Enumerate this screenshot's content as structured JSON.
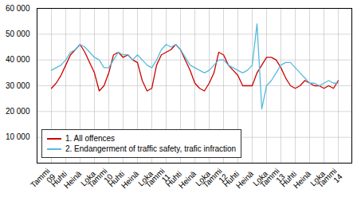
{
  "chart_data": {
    "type": "line",
    "categories": [
      "Tammi\n09",
      null,
      null,
      "Huhti",
      null,
      null,
      "Heinä",
      null,
      null,
      "Loka",
      null,
      null,
      "Tammi\n10",
      null,
      null,
      "Huhti",
      null,
      null,
      "Heinä",
      null,
      null,
      "Loka",
      null,
      null,
      "Tammi\n11",
      null,
      null,
      "Huhti",
      null,
      null,
      "Heinä",
      null,
      null,
      "Loka",
      null,
      null,
      "Tammi\n12",
      null,
      null,
      "Huhti",
      null,
      null,
      "Heinä",
      null,
      null,
      "Loka",
      null,
      null,
      "Tammi\n13",
      null,
      null,
      "Huhti",
      null,
      null,
      "Heinä",
      null,
      null,
      "Loka",
      null,
      null,
      "Tammi\n14"
    ],
    "series": [
      {
        "name": "1. All offences",
        "color": "#cc0000",
        "values": [
          29000,
          31000,
          34000,
          38000,
          42000,
          44000,
          46000,
          43000,
          39000,
          35000,
          28000,
          30000,
          35000,
          42000,
          43000,
          41000,
          42000,
          40000,
          39000,
          32000,
          28000,
          29000,
          38000,
          42000,
          43000,
          44000,
          46000,
          44000,
          40000,
          36000,
          31000,
          29000,
          28000,
          31000,
          35000,
          43000,
          42000,
          38000,
          36000,
          34000,
          30000,
          30000,
          30000,
          35000,
          38000,
          41000,
          41000,
          40000,
          37000,
          33000,
          30000,
          29000,
          30000,
          32000,
          31000,
          30000,
          30000,
          29000,
          30000,
          29000,
          32000
        ]
      },
      {
        "name": "2. Endangerment of traffic safety, trafic infraction",
        "color": "#55bbdd",
        "values": [
          36000,
          37000,
          38000,
          40000,
          43000,
          44000,
          46000,
          45000,
          43000,
          41000,
          40000,
          37000,
          37000,
          40000,
          43000,
          42000,
          42000,
          40000,
          42000,
          40000,
          38000,
          37000,
          40000,
          44000,
          46000,
          45000,
          46000,
          44000,
          41000,
          38000,
          37000,
          36000,
          35000,
          36000,
          38000,
          40000,
          40000,
          38000,
          37000,
          36000,
          35000,
          36000,
          38000,
          54000,
          21000,
          30000,
          32000,
          35000,
          38000,
          39000,
          39000,
          37000,
          35000,
          33000,
          31000,
          31000,
          30000,
          31000,
          32000,
          31000,
          31000
        ]
      }
    ],
    "ylim": [
      0,
      60000
    ],
    "yticks": [
      {
        "value": 10000,
        "label": "10 000"
      },
      {
        "value": 20000,
        "label": "20 000"
      },
      {
        "value": 30000,
        "label": "30 000"
      },
      {
        "value": 40000,
        "label": "40 000"
      },
      {
        "value": 50000,
        "label": "50 000"
      },
      {
        "value": 60000,
        "label": "60 000"
      }
    ],
    "grid": true,
    "legend": "lower left"
  }
}
